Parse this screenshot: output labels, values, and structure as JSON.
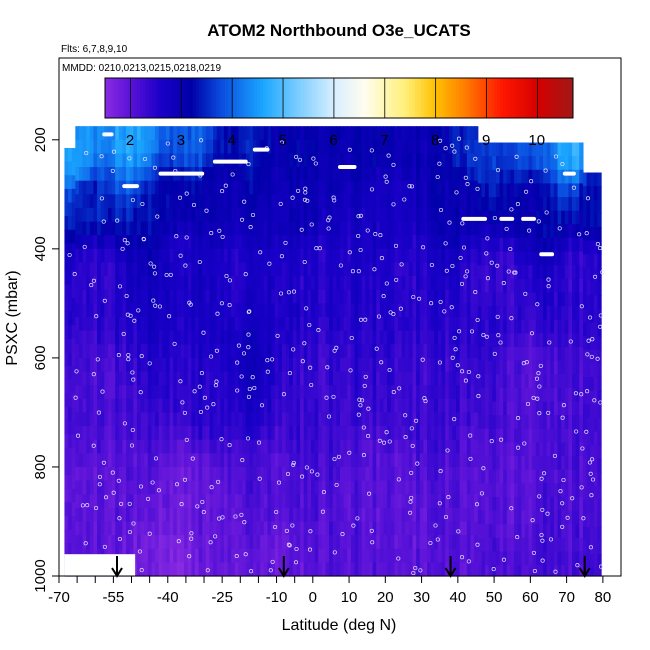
{
  "chart_data": {
    "type": "heatmap",
    "title": "ATOM2 Northbound O3e_UCATS",
    "subtitle_flights": "Flts: 6,7,8,9,10",
    "subtitle_dates": "MMDD: 0210,0213,0215,0218,0219",
    "xlabel": "Latitude (deg N)",
    "ylabel": "PSXC (mbar)",
    "xlim": [
      -70,
      85
    ],
    "ylim": [
      1000,
      50
    ],
    "y_reversed": true,
    "x_ticks": [
      -70,
      -55,
      -40,
      -25,
      -10,
      0,
      10,
      20,
      30,
      40,
      50,
      60,
      70,
      80
    ],
    "x_tick_labels": [
      "-70",
      "-55",
      "-40",
      "-25",
      "-10",
      "0",
      "10",
      "20",
      "30",
      "40",
      "50",
      "60",
      "70",
      "80"
    ],
    "x_minor_ticks": [
      -65,
      -60,
      -50,
      -45,
      -35,
      -30,
      -20,
      -15,
      -5
    ],
    "y_ticks": [
      200,
      400,
      600,
      800,
      1000
    ],
    "y_tick_labels": [
      "200",
      "400",
      "600",
      "800",
      "1000"
    ],
    "colorbar": {
      "min": 1.5,
      "max": 10.7,
      "ticks": [
        2,
        3,
        4,
        5,
        6,
        7,
        8,
        9,
        10
      ],
      "tick_labels": [
        "2",
        "3",
        "4",
        "5",
        "6",
        "7",
        "8",
        "9",
        "10"
      ],
      "stops": [
        {
          "v": 1.5,
          "c": "#8a2be2"
        },
        {
          "v": 2.0,
          "c": "#5a12d8"
        },
        {
          "v": 2.6,
          "c": "#1a00c8"
        },
        {
          "v": 3.2,
          "c": "#0000a8"
        },
        {
          "v": 3.8,
          "c": "#0a4ee0"
        },
        {
          "v": 4.6,
          "c": "#1aa6ff"
        },
        {
          "v": 5.2,
          "c": "#6ec8ff"
        },
        {
          "v": 6.0,
          "c": "#d8eeff"
        },
        {
          "v": 6.6,
          "c": "#fffdf0"
        },
        {
          "v": 7.4,
          "c": "#fff07a"
        },
        {
          "v": 8.0,
          "c": "#ffc000"
        },
        {
          "v": 8.6,
          "c": "#ff7a00"
        },
        {
          "v": 9.3,
          "c": "#ff1800"
        },
        {
          "v": 10.0,
          "c": "#d60000"
        },
        {
          "v": 10.7,
          "c": "#a01818"
        }
      ]
    },
    "column_tops_mbar": [
      {
        "lat": -68.5,
        "top": 215
      },
      {
        "lat": -65.5,
        "top": 175
      },
      {
        "lat": -57,
        "top": 175
      },
      {
        "lat": -47,
        "top": 175
      },
      {
        "lat": 37,
        "top": 175
      },
      {
        "lat": 46,
        "top": 205
      },
      {
        "lat": 64,
        "top": 205
      },
      {
        "lat": 72,
        "top": 205
      },
      {
        "lat": 75,
        "top": 260
      },
      {
        "lat": 80,
        "top": 260
      }
    ],
    "missing_regions": [
      {
        "lat_min": -68.5,
        "lat_max": -49,
        "p_min": 960,
        "p_max": 1000
      }
    ],
    "profiles_lat": [
      -54,
      -8,
      38,
      75
    ],
    "flight_level_segments": [
      {
        "lat_min": -57.5,
        "lat_max": -55.5,
        "p": 190
      },
      {
        "lat_min": -52,
        "lat_max": -48.5,
        "p": 285
      },
      {
        "lat_min": -42,
        "lat_max": -30.5,
        "p": 262
      },
      {
        "lat_min": -27,
        "lat_max": -18.5,
        "p": 240
      },
      {
        "lat_min": -16,
        "lat_max": -12.5,
        "p": 218
      },
      {
        "lat_min": 7.5,
        "lat_max": 11.5,
        "p": 250
      },
      {
        "lat_min": 41.5,
        "lat_max": 47.5,
        "p": 345
      },
      {
        "lat_min": 52,
        "lat_max": 55,
        "p": 345
      },
      {
        "lat_min": 58,
        "lat_max": 61,
        "p": 345
      },
      {
        "lat_min": 63,
        "lat_max": 66,
        "p": 410
      },
      {
        "lat_min": 69.5,
        "lat_max": 72,
        "p": 262
      }
    ],
    "field_samples": [
      {
        "lat": -65,
        "p": 240,
        "v": 4.6
      },
      {
        "lat": -50,
        "p": 200,
        "v": 4.6
      },
      {
        "lat": -35,
        "p": 200,
        "v": 4.0
      },
      {
        "lat": -20,
        "p": 205,
        "v": 3.4
      },
      {
        "lat": -5,
        "p": 205,
        "v": 3.1
      },
      {
        "lat": 15,
        "p": 215,
        "v": 3.1
      },
      {
        "lat": 30,
        "p": 210,
        "v": 3.0
      },
      {
        "lat": 45,
        "p": 225,
        "v": 3.6
      },
      {
        "lat": 60,
        "p": 225,
        "v": 3.9
      },
      {
        "lat": 72,
        "p": 220,
        "v": 4.7
      },
      {
        "lat": -62,
        "p": 300,
        "v": 3.4
      },
      {
        "lat": -40,
        "p": 300,
        "v": 3.2
      },
      {
        "lat": -25,
        "p": 300,
        "v": 3.0
      },
      {
        "lat": -5,
        "p": 320,
        "v": 2.9
      },
      {
        "lat": 20,
        "p": 310,
        "v": 2.7
      },
      {
        "lat": 40,
        "p": 300,
        "v": 3.0
      },
      {
        "lat": 60,
        "p": 300,
        "v": 3.1
      },
      {
        "lat": 78,
        "p": 300,
        "v": 3.2
      },
      {
        "lat": -60,
        "p": 450,
        "v": 2.4
      },
      {
        "lat": -35,
        "p": 420,
        "v": 2.7
      },
      {
        "lat": -20,
        "p": 450,
        "v": 2.6
      },
      {
        "lat": 0,
        "p": 450,
        "v": 2.5
      },
      {
        "lat": 25,
        "p": 450,
        "v": 2.5
      },
      {
        "lat": 50,
        "p": 450,
        "v": 2.3
      },
      {
        "lat": 75,
        "p": 450,
        "v": 2.4
      },
      {
        "lat": -60,
        "p": 650,
        "v": 2.2
      },
      {
        "lat": -30,
        "p": 650,
        "v": 2.5
      },
      {
        "lat": -18,
        "p": 600,
        "v": 2.8
      },
      {
        "lat": 0,
        "p": 650,
        "v": 2.3
      },
      {
        "lat": 30,
        "p": 650,
        "v": 2.3
      },
      {
        "lat": 60,
        "p": 650,
        "v": 2.1
      },
      {
        "lat": 80,
        "p": 650,
        "v": 2.2
      },
      {
        "lat": -60,
        "p": 850,
        "v": 2.0
      },
      {
        "lat": -35,
        "p": 850,
        "v": 1.9
      },
      {
        "lat": -10,
        "p": 850,
        "v": 2.1
      },
      {
        "lat": 20,
        "p": 850,
        "v": 2.0
      },
      {
        "lat": 50,
        "p": 850,
        "v": 2.0
      },
      {
        "lat": 78,
        "p": 850,
        "v": 2.1
      },
      {
        "lat": -40,
        "p": 980,
        "v": 1.7
      },
      {
        "lat": -10,
        "p": 980,
        "v": 1.9
      },
      {
        "lat": 30,
        "p": 980,
        "v": 2.0
      },
      {
        "lat": 70,
        "p": 980,
        "v": 2.2
      }
    ],
    "flight_level_color": "#ffffff",
    "profile_arrow_color": "#000000"
  }
}
